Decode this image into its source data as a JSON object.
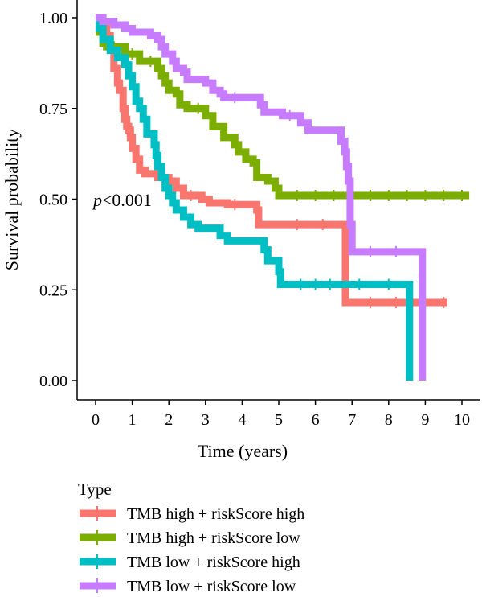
{
  "chart_data": {
    "type": "line",
    "xlabel": "Time (years)",
    "ylabel": "Survival probability",
    "xlim": [
      0,
      10
    ],
    "ylim": [
      0,
      1
    ],
    "x_ticks": [
      "0",
      "1",
      "2",
      "3",
      "4",
      "5",
      "6",
      "7",
      "8",
      "9",
      "10"
    ],
    "y_ticks": [
      "0.00",
      "0.25",
      "0.50",
      "0.75",
      "1.00"
    ],
    "annotation": {
      "p_symbol": "p",
      "p_text": "<0.001",
      "x": 0.0,
      "y": 0.5
    },
    "legend": {
      "title": "Type",
      "position": "bottom-left"
    },
    "series": [
      {
        "name": "TMB high + riskScore high",
        "color": "#F8766D",
        "steps": [
          [
            0,
            1.0
          ],
          [
            0.15,
            0.98
          ],
          [
            0.3,
            0.95
          ],
          [
            0.4,
            0.92
          ],
          [
            0.5,
            0.86
          ],
          [
            0.6,
            0.82
          ],
          [
            0.65,
            0.8
          ],
          [
            0.75,
            0.75
          ],
          [
            0.8,
            0.72
          ],
          [
            0.85,
            0.7
          ],
          [
            0.9,
            0.69
          ],
          [
            0.95,
            0.67
          ],
          [
            1.0,
            0.64
          ],
          [
            1.1,
            0.61
          ],
          [
            1.2,
            0.58
          ],
          [
            1.35,
            0.57
          ],
          [
            1.7,
            0.56
          ],
          [
            2.0,
            0.55
          ],
          [
            2.2,
            0.53
          ],
          [
            2.4,
            0.51
          ],
          [
            2.9,
            0.5
          ],
          [
            3.1,
            0.49
          ],
          [
            3.6,
            0.485
          ],
          [
            4.4,
            0.47
          ],
          [
            4.45,
            0.43
          ],
          [
            6.8,
            0.43
          ],
          [
            6.82,
            0.215
          ],
          [
            9.6,
            0.215
          ]
        ],
        "censor_x": [
          2.6,
          3.8,
          5.5,
          6.2,
          7.5,
          8.2,
          9.5
        ]
      },
      {
        "name": "TMB high + riskScore low",
        "color": "#7CAE00",
        "steps": [
          [
            0,
            1.0
          ],
          [
            0.1,
            0.96
          ],
          [
            0.2,
            0.93
          ],
          [
            0.3,
            0.92
          ],
          [
            0.8,
            0.9
          ],
          [
            1.2,
            0.88
          ],
          [
            1.7,
            0.86
          ],
          [
            1.8,
            0.84
          ],
          [
            1.9,
            0.82
          ],
          [
            2.0,
            0.8
          ],
          [
            2.2,
            0.79
          ],
          [
            2.3,
            0.76
          ],
          [
            2.5,
            0.75
          ],
          [
            3.0,
            0.73
          ],
          [
            3.2,
            0.7
          ],
          [
            3.5,
            0.67
          ],
          [
            3.8,
            0.65
          ],
          [
            3.9,
            0.63
          ],
          [
            4.1,
            0.61
          ],
          [
            4.3,
            0.6
          ],
          [
            4.4,
            0.56
          ],
          [
            4.7,
            0.55
          ],
          [
            4.9,
            0.53
          ],
          [
            5.0,
            0.51
          ],
          [
            10.2,
            0.51
          ]
        ],
        "censor_x": [
          0.5,
          1.0,
          1.5,
          2.8,
          5.5,
          6.0,
          6.5,
          7.0,
          7.5,
          8.0,
          8.5,
          9.0,
          9.5,
          10.0
        ]
      },
      {
        "name": "TMB low + riskScore high",
        "color": "#00BFC4",
        "steps": [
          [
            0,
            1.0
          ],
          [
            0.1,
            0.97
          ],
          [
            0.2,
            0.94
          ],
          [
            0.4,
            0.91
          ],
          [
            0.6,
            0.89
          ],
          [
            0.8,
            0.87
          ],
          [
            0.9,
            0.84
          ],
          [
            1.0,
            0.81
          ],
          [
            1.1,
            0.77
          ],
          [
            1.2,
            0.75
          ],
          [
            1.3,
            0.72
          ],
          [
            1.4,
            0.68
          ],
          [
            1.6,
            0.65
          ],
          [
            1.65,
            0.62
          ],
          [
            1.7,
            0.59
          ],
          [
            1.8,
            0.56
          ],
          [
            1.9,
            0.53
          ],
          [
            2.0,
            0.51
          ],
          [
            2.1,
            0.49
          ],
          [
            2.2,
            0.47
          ],
          [
            2.4,
            0.45
          ],
          [
            2.6,
            0.43
          ],
          [
            2.8,
            0.42
          ],
          [
            3.4,
            0.4
          ],
          [
            3.6,
            0.385
          ],
          [
            4.6,
            0.36
          ],
          [
            4.7,
            0.33
          ],
          [
            5.0,
            0.3
          ],
          [
            5.05,
            0.265
          ],
          [
            8.55,
            0.265
          ],
          [
            8.57,
            0.0
          ]
        ],
        "censor_x": [
          5.6,
          6.0,
          6.4,
          7.2,
          8.0
        ]
      },
      {
        "name": "TMB low + riskScore low",
        "color": "#C77CFF",
        "steps": [
          [
            0,
            1.0
          ],
          [
            0.2,
            0.99
          ],
          [
            0.5,
            0.98
          ],
          [
            0.8,
            0.97
          ],
          [
            1.0,
            0.96
          ],
          [
            1.5,
            0.95
          ],
          [
            1.7,
            0.94
          ],
          [
            1.8,
            0.92
          ],
          [
            1.9,
            0.9
          ],
          [
            2.1,
            0.88
          ],
          [
            2.2,
            0.86
          ],
          [
            2.4,
            0.85
          ],
          [
            2.5,
            0.83
          ],
          [
            3.0,
            0.82
          ],
          [
            3.2,
            0.8
          ],
          [
            3.4,
            0.79
          ],
          [
            3.5,
            0.78
          ],
          [
            4.5,
            0.76
          ],
          [
            4.6,
            0.74
          ],
          [
            5.1,
            0.73
          ],
          [
            5.6,
            0.71
          ],
          [
            5.8,
            0.69
          ],
          [
            6.7,
            0.66
          ],
          [
            6.8,
            0.63
          ],
          [
            6.85,
            0.59
          ],
          [
            6.9,
            0.55
          ],
          [
            6.95,
            0.43
          ],
          [
            7.0,
            0.355
          ],
          [
            8.9,
            0.355
          ],
          [
            8.92,
            0.0
          ]
        ],
        "censor_x": [
          3.8,
          5.3,
          7.5,
          8.2
        ]
      }
    ]
  }
}
